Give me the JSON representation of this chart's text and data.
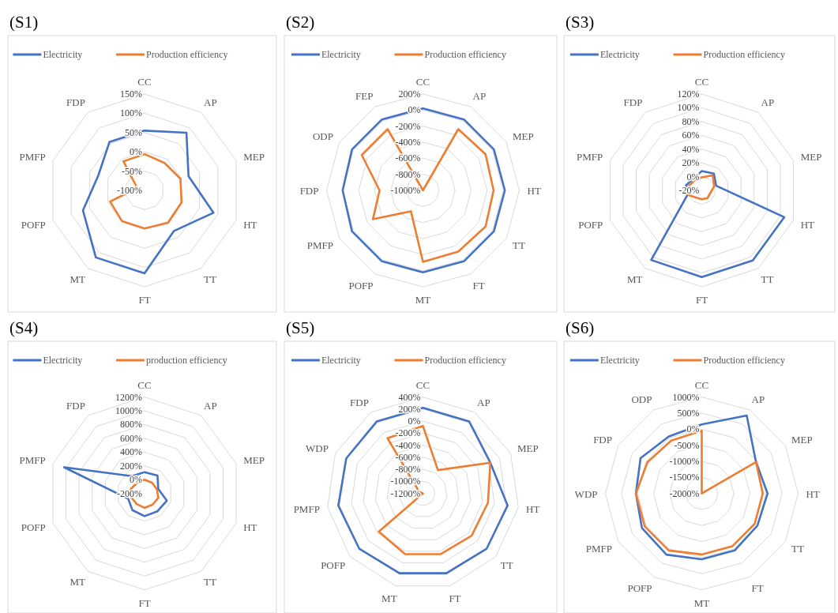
{
  "chart_data": [
    {
      "type": "radar",
      "title": "(S1)",
      "legend": "top",
      "grid": true,
      "categories": [
        "CC",
        "AP",
        "MEP",
        "HT",
        "TT",
        "FT",
        "MT",
        "POFP",
        "PMFP",
        "FDP"
      ],
      "ylim": [
        -100,
        150
      ],
      "yticks": [
        {
          "value": -100,
          "label": "-100%"
        },
        {
          "value": -50,
          "label": "-50%"
        },
        {
          "value": 0,
          "label": "0%"
        },
        {
          "value": 50,
          "label": "50%"
        },
        {
          "value": 100,
          "label": "100%"
        },
        {
          "value": 150,
          "label": "150%"
        }
      ],
      "series": [
        {
          "name": "Electricity",
          "color": "#4472c4",
          "values": [
            55,
            85,
            20,
            88,
            30,
            115,
            115,
            68,
            26,
            55
          ]
        },
        {
          "name": "Production efficiency",
          "color": "#ed7d31",
          "values": [
            -6,
            -12,
            -2,
            1,
            4,
            -1,
            -1,
            -6,
            -80,
            -7
          ]
        }
      ]
    },
    {
      "type": "radar",
      "title": "(S2)",
      "legend": "top",
      "grid": true,
      "categories": [
        "CC",
        "AP",
        "MEP",
        "HT",
        "TT",
        "FT",
        "MT",
        "POFP",
        "PMFP",
        "FDP",
        "ODP",
        "FEP"
      ],
      "ylim": [
        -1000,
        200
      ],
      "yticks": [
        {
          "value": -1000,
          "label": "-1000%"
        },
        {
          "value": -800,
          "label": "-800%"
        },
        {
          "value": -600,
          "label": "-600%"
        },
        {
          "value": -400,
          "label": "-400%"
        },
        {
          "value": -200,
          "label": "-200%"
        },
        {
          "value": 0,
          "label": "0%"
        },
        {
          "value": 200,
          "label": "200%"
        }
      ],
      "series": [
        {
          "name": "Electricity",
          "color": "#4472c4",
          "values": [
            20,
            20,
            20,
            20,
            20,
            20,
            20,
            20,
            20,
            0,
            20,
            20
          ]
        },
        {
          "name": "Production efficiency",
          "color": "#ed7d31",
          "values": [
            -1000,
            -120,
            -100,
            -120,
            -100,
            -120,
            -110,
            -700,
            -280,
            -460,
            -120,
            -120
          ]
        }
      ]
    },
    {
      "type": "radar",
      "title": "(S3)",
      "legend": "top",
      "grid": true,
      "categories": [
        "CC",
        "AP",
        "MEP",
        "HT",
        "TT",
        "FT",
        "MT",
        "POFP",
        "PMFP",
        "FDP"
      ],
      "ylim": [
        -20,
        120
      ],
      "yticks": [
        {
          "value": -20,
          "label": "-20%"
        },
        {
          "value": 0,
          "label": "0%"
        },
        {
          "value": 20,
          "label": "20%"
        },
        {
          "value": 40,
          "label": "40%"
        },
        {
          "value": 60,
          "label": "60%"
        },
        {
          "value": 80,
          "label": "80%"
        },
        {
          "value": 100,
          "label": "100%"
        },
        {
          "value": 120,
          "label": "120%"
        }
      ],
      "series": [
        {
          "name": "Electricity",
          "color": "#4472c4",
          "values": [
            8,
            10,
            2,
            106,
            106,
            106,
            105,
            2,
            4,
            1
          ]
        },
        {
          "name": "Production efficiency",
          "color": "#ed7d31",
          "values": [
            -1,
            7,
            -1,
            -7,
            -6,
            -7,
            -7,
            1,
            0,
            -2
          ]
        }
      ]
    },
    {
      "type": "radar",
      "title": "(S4)",
      "legend": "top",
      "grid": true,
      "categories": [
        "CC",
        "AP",
        "MEP",
        "HT",
        "TT",
        "FT",
        "MT",
        "POFP",
        "PMFP",
        "FDP"
      ],
      "ylim": [
        -200,
        1200
      ],
      "yticks": [
        {
          "value": -200,
          "label": "-200%"
        },
        {
          "value": 0,
          "label": "0%"
        },
        {
          "value": 200,
          "label": "200%"
        },
        {
          "value": 400,
          "label": "400%"
        },
        {
          "value": 600,
          "label": "600%"
        },
        {
          "value": 800,
          "label": "800%"
        },
        {
          "value": 1000,
          "label": "1000%"
        },
        {
          "value": 1200,
          "label": "1200%"
        }
      ],
      "series": [
        {
          "name": "Electricity",
          "color": "#4472c4",
          "values": [
            110,
            120,
            10,
            140,
            120,
            130,
            100,
            50,
            1030,
            110
          ]
        },
        {
          "name": "production efficiency",
          "color": "#ed7d31",
          "values": [
            0,
            -10,
            -10,
            10,
            0,
            10,
            -10,
            0,
            10,
            -10
          ]
        }
      ]
    },
    {
      "type": "radar",
      "title": "(S5)",
      "legend": "top",
      "grid": true,
      "categories": [
        "CC",
        "AP",
        "MEP",
        "HT",
        "TT",
        "FT",
        "MT",
        "POFP",
        "PMFP",
        "WDP",
        "FDP"
      ],
      "ylim": [
        -1200,
        400
      ],
      "yticks": [
        {
          "value": -1200,
          "label": "-1200%"
        },
        {
          "value": -1000,
          "label": "-1000%"
        },
        {
          "value": -800,
          "label": "-800%"
        },
        {
          "value": -600,
          "label": "-600%"
        },
        {
          "value": -400,
          "label": "-400%"
        },
        {
          "value": -200,
          "label": "-200%"
        },
        {
          "value": 0,
          "label": "0%"
        },
        {
          "value": 200,
          "label": "200%"
        },
        {
          "value": 400,
          "label": "400%"
        }
      ],
      "series": [
        {
          "name": "Electricity",
          "color": "#4472c4",
          "values": [
            220,
            220,
            30,
            220,
            200,
            180,
            180,
            200,
            220,
            200,
            220
          ]
        },
        {
          "name": "Production efficiency",
          "color": "#ed7d31",
          "values": [
            -80,
            -740,
            30,
            -110,
            -130,
            -150,
            -150,
            -230,
            -1200,
            -1130,
            -110
          ]
        }
      ]
    },
    {
      "type": "radar",
      "title": "(S6)",
      "legend": "top",
      "grid": true,
      "categories": [
        "CC",
        "AP",
        "MEP",
        "HT",
        "TT",
        "FT",
        "MT",
        "POFP",
        "PMFP",
        "WDP",
        "FDP",
        "ODP"
      ],
      "ylim": [
        -2000,
        1000
      ],
      "yticks": [
        {
          "value": -2000,
          "label": "-2000%"
        },
        {
          "value": -1500,
          "label": "-1500%"
        },
        {
          "value": -1000,
          "label": "-1000%"
        },
        {
          "value": -500,
          "label": "-500%"
        },
        {
          "value": 0,
          "label": "0%"
        },
        {
          "value": 500,
          "label": "500%"
        },
        {
          "value": 1000,
          "label": "1000%"
        }
      ],
      "series": [
        {
          "name": "Electricity",
          "color": "#4472c4",
          "values": [
            150,
            800,
            -50,
            50,
            0,
            50,
            50,
            200,
            150,
            50,
            200,
            50
          ]
        },
        {
          "name": "Production efficiency",
          "color": "#ed7d31",
          "values": [
            -50,
            -2000,
            -50,
            -100,
            -100,
            -100,
            -100,
            50,
            50,
            50,
            -50,
            -100
          ]
        }
      ]
    }
  ]
}
